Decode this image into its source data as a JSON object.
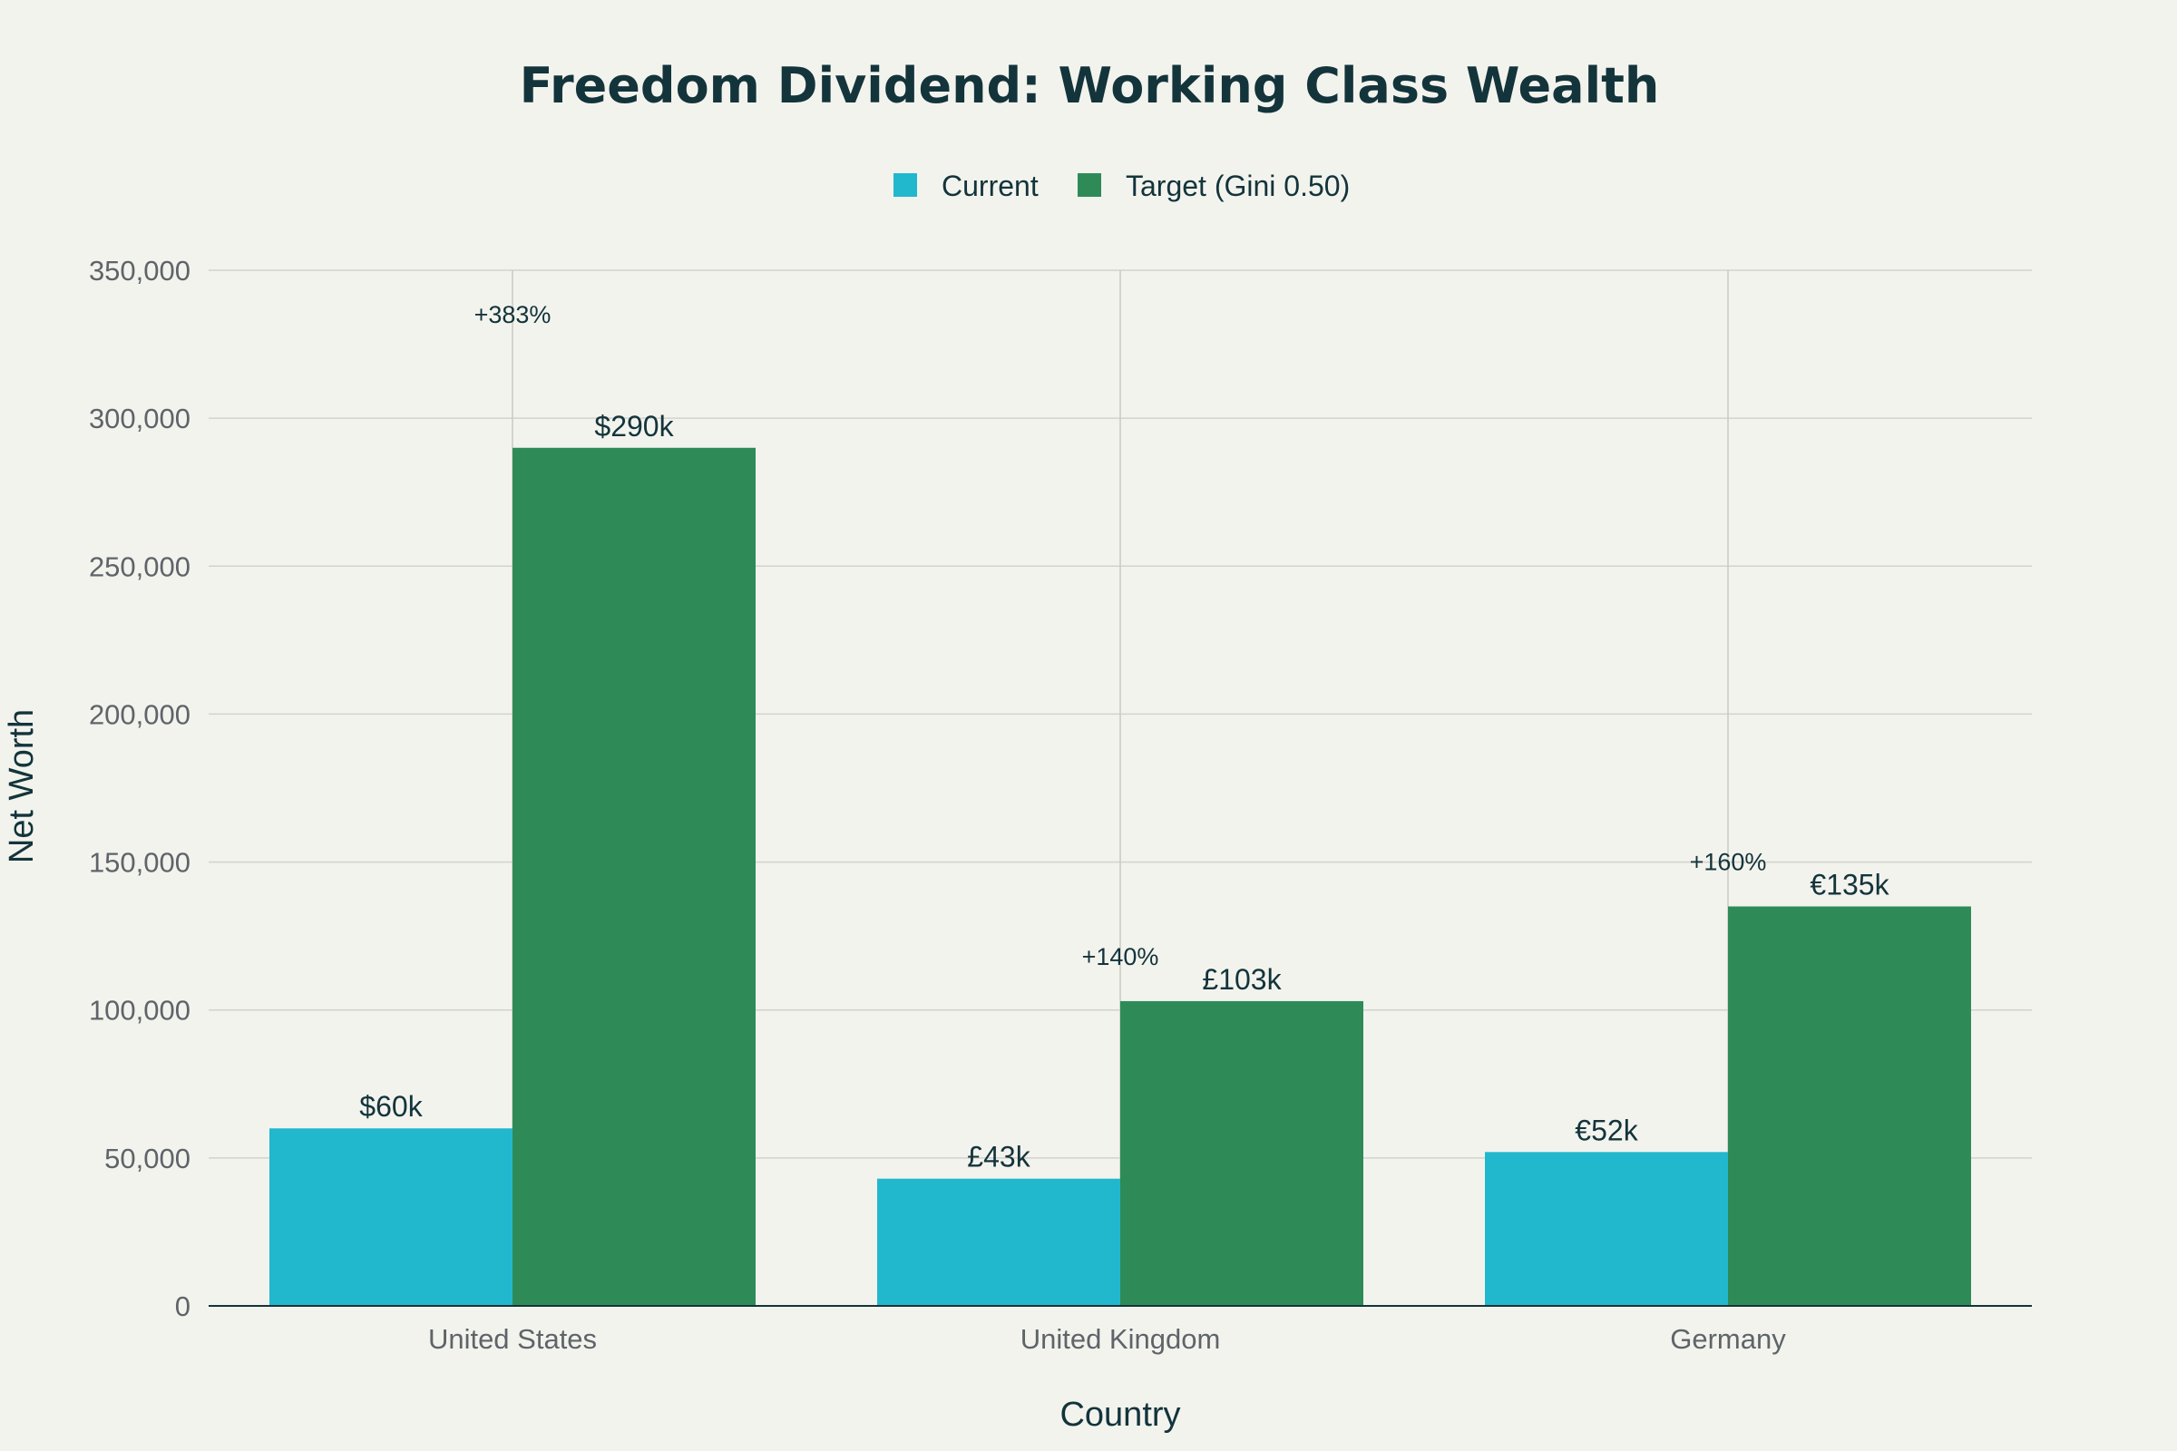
{
  "chart_data": {
    "type": "bar",
    "title": "Freedom Dividend: Working Class Wealth",
    "xlabel": "Country",
    "ylabel": "Net Worth",
    "categories": [
      "United States",
      "United Kingdom",
      "Germany"
    ],
    "ylim": [
      0,
      350000
    ],
    "yticks": [
      0,
      50000,
      100000,
      150000,
      200000,
      250000,
      300000,
      350000
    ],
    "ytick_labels": [
      "0",
      "50,000",
      "100,000",
      "150,000",
      "200,000",
      "250,000",
      "300,000",
      "350,000"
    ],
    "grid": true,
    "legend_position": "top-center",
    "series": [
      {
        "name": "Current",
        "color": "#21b8cd",
        "values": [
          60000,
          43000,
          52000
        ],
        "labels": [
          "$60k",
          "£43k",
          "€52k"
        ]
      },
      {
        "name": "Target (Gini 0.50)",
        "color": "#2e8b57",
        "values": [
          290000,
          103000,
          135000
        ],
        "labels": [
          "$290k",
          "£103k",
          "€135k"
        ]
      }
    ],
    "annotations": [
      {
        "category": "United States",
        "text": "+383%",
        "y": 335000
      },
      {
        "category": "United Kingdom",
        "text": "+140%",
        "y": 118000
      },
      {
        "category": "Germany",
        "text": "+160%",
        "y": 150000
      }
    ]
  }
}
